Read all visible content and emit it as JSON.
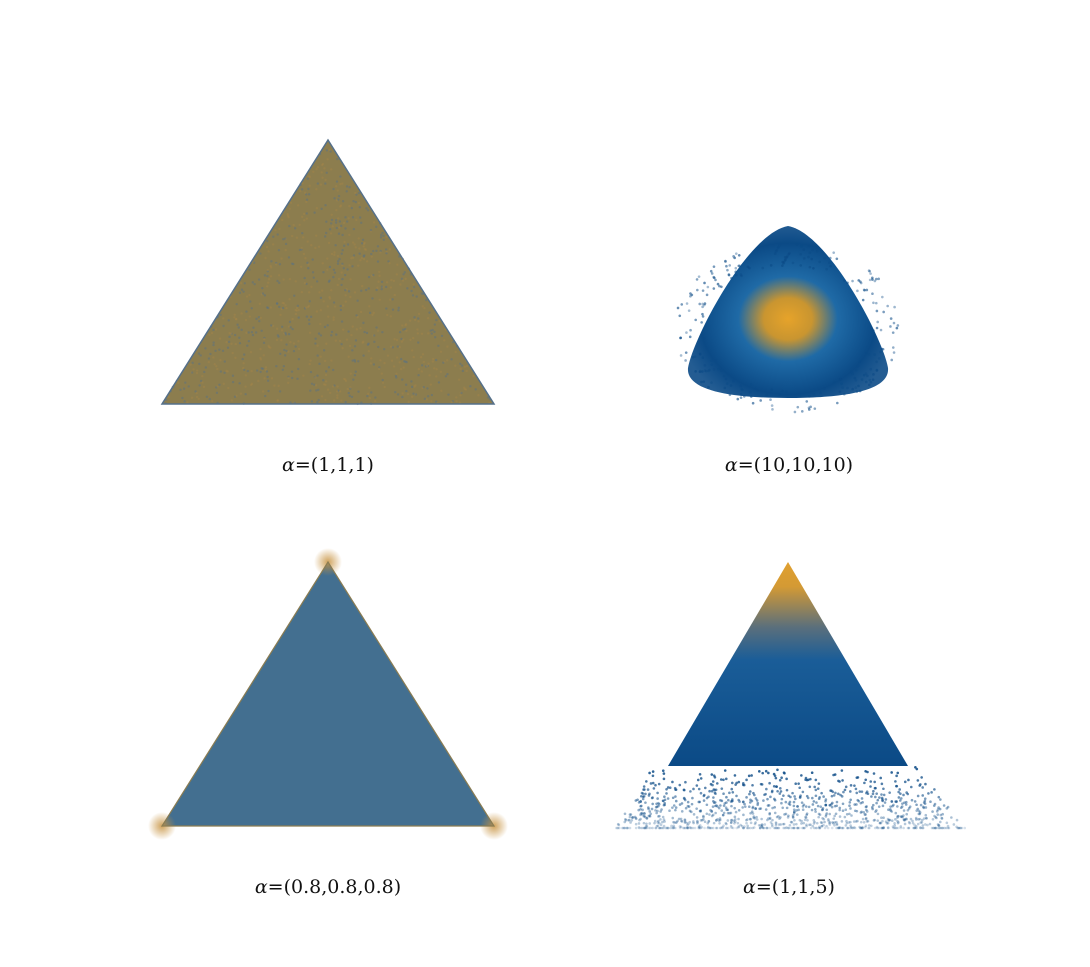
{
  "chart_data": [
    {
      "type": "scatter",
      "title": "",
      "caption_symbol": "α",
      "caption_value": "=(1,1,1)",
      "alpha": [
        1,
        1,
        1
      ],
      "shading": {
        "outer": "#55708a",
        "mid": "#8c7d4e",
        "inner": "#a3854a"
      },
      "points_sample": [
        [
          0.33,
          0.33,
          0.34
        ],
        [
          0.1,
          0.2,
          0.7
        ],
        [
          0.6,
          0.3,
          0.1
        ],
        [
          0.2,
          0.7,
          0.1
        ]
      ],
      "xlabel": "",
      "ylabel": "",
      "grid": false
    },
    {
      "type": "scatter",
      "title": "",
      "caption_symbol": "α",
      "caption_value": "=(10,10,10)",
      "alpha": [
        10,
        10,
        10
      ],
      "shading": {
        "outer": "#0b4a86",
        "mid": "#1f6aa6",
        "inner": "#e6a32a"
      },
      "points_sample": [
        [
          0.33,
          0.33,
          0.34
        ],
        [
          0.3,
          0.4,
          0.3
        ],
        [
          0.4,
          0.3,
          0.3
        ],
        [
          0.35,
          0.3,
          0.35
        ]
      ],
      "xlabel": "",
      "ylabel": "",
      "grid": false
    },
    {
      "type": "scatter",
      "title": "",
      "caption_symbol": "α",
      "caption_value": "=(0.8,0.8,0.8)",
      "alpha": [
        0.8,
        0.8,
        0.8
      ],
      "shading": {
        "outer": "#3f6c8e",
        "mid": "#436f90",
        "inner": "#4a7293",
        "corner": "#c7923f"
      },
      "points_sample": [
        [
          0.9,
          0.05,
          0.05
        ],
        [
          0.05,
          0.9,
          0.05
        ],
        [
          0.05,
          0.05,
          0.9
        ],
        [
          0.33,
          0.33,
          0.34
        ]
      ],
      "xlabel": "",
      "ylabel": "",
      "grid": false
    },
    {
      "type": "scatter",
      "title": "",
      "caption_symbol": "α",
      "caption_value": "=(1,1,5)",
      "alpha": [
        1,
        1,
        5
      ],
      "shading": {
        "outer": "#0b4a86",
        "mid": "#1a5d98",
        "inner": "#e0a030"
      },
      "points_sample": [
        [
          0.1,
          0.1,
          0.8
        ],
        [
          0.2,
          0.2,
          0.6
        ],
        [
          0.05,
          0.15,
          0.8
        ],
        [
          0.3,
          0.3,
          0.4
        ]
      ],
      "xlabel": "",
      "ylabel": "",
      "grid": false
    }
  ]
}
